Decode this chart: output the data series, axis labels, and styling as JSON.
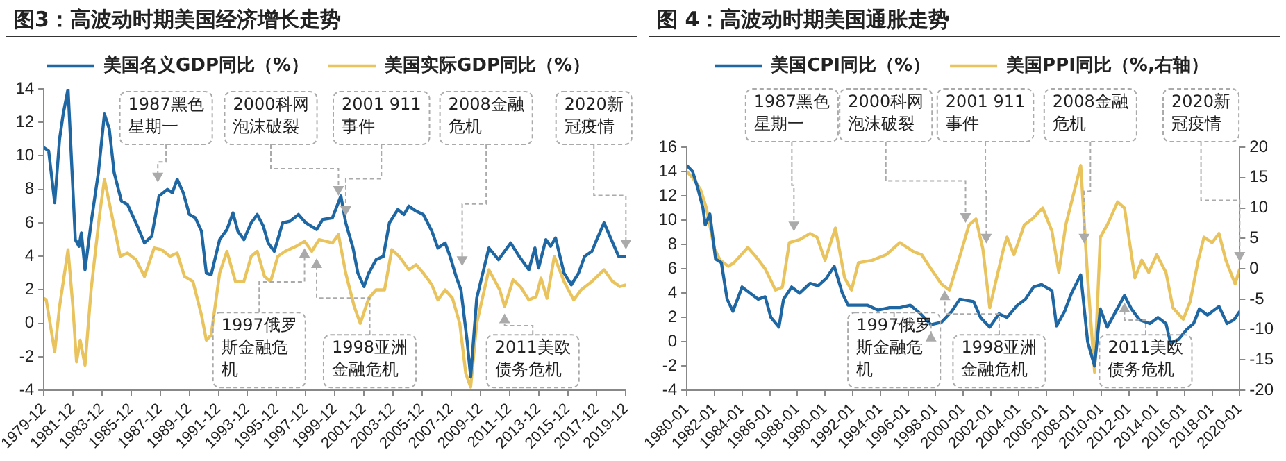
{
  "chart_data": [
    {
      "type": "line",
      "title": "图3：高波动时期美国经济增长走势",
      "legend": "top",
      "grid": false,
      "xlim": [
        "1979-12",
        "2019-12"
      ],
      "xticks": [
        "1979-12",
        "1981-12",
        "1983-12",
        "1985-12",
        "1987-12",
        "1989-12",
        "1991-12",
        "1993-12",
        "1995-12",
        "1997-12",
        "1999-12",
        "2001-12",
        "2003-12",
        "2005-12",
        "2007-12",
        "2009-12",
        "2011-12",
        "2013-12",
        "2015-12",
        "2017-12",
        "2019-12"
      ],
      "ylim": [
        -4,
        14
      ],
      "yticks": [
        -4,
        -2,
        0,
        2,
        4,
        6,
        8,
        10,
        12,
        14
      ],
      "series": [
        {
          "name": "美国名义GDP同比（%）",
          "color": "#1f67a3",
          "x": [
            "1979-12",
            "1980-04",
            "1980-09",
            "1981-01",
            "1981-04",
            "1981-08",
            "1982-02",
            "1982-05",
            "1982-07",
            "1982-10",
            "1983-03",
            "1983-09",
            "1984-02",
            "1984-06",
            "1984-10",
            "1985-04",
            "1985-09",
            "1986-04",
            "1986-11",
            "1987-05",
            "1987-11",
            "1988-06",
            "1988-10",
            "1989-02",
            "1989-07",
            "1989-12",
            "1990-05",
            "1990-10",
            "1991-02",
            "1991-06",
            "1992-01",
            "1992-07",
            "1992-12",
            "1993-04",
            "1993-09",
            "1994-03",
            "1994-08",
            "1995-01",
            "1995-05",
            "1995-10",
            "1996-05",
            "1996-11",
            "1997-06",
            "1997-12",
            "1998-09",
            "1999-02",
            "1999-10",
            "2000-05",
            "2000-09",
            "2001-03",
            "2001-07",
            "2001-12",
            "2002-04",
            "2002-10",
            "2003-04",
            "2003-09",
            "2004-04",
            "2004-09",
            "2005-01",
            "2005-07",
            "2006-01",
            "2006-08",
            "2007-01",
            "2007-07",
            "2007-11",
            "2008-04",
            "2008-08",
            "2009-01",
            "2009-04",
            "2009-09",
            "2010-07",
            "2011-03",
            "2012-01",
            "2012-08",
            "2013-04",
            "2013-09",
            "2013-12",
            "2014-06",
            "2014-10",
            "2015-02",
            "2015-09",
            "2016-03",
            "2016-09",
            "2017-02",
            "2017-08",
            "2017-12",
            "2018-06",
            "2018-12",
            "2019-06",
            "2019-12"
          ],
          "values": [
            10.5,
            10.3,
            7.2,
            11,
            12.5,
            14,
            5,
            4.6,
            5.4,
            3.2,
            6,
            9,
            12.5,
            11.6,
            9,
            7.3,
            7.1,
            6,
            4.8,
            5.2,
            7.6,
            8,
            7.8,
            8.6,
            7.8,
            6.5,
            6.3,
            5.5,
            3,
            2.9,
            5,
            5.6,
            6.6,
            5.5,
            5,
            6,
            6.5,
            5.8,
            4.8,
            4.3,
            6,
            6.1,
            6.5,
            6,
            5.6,
            6.2,
            6.3,
            7.6,
            6,
            4.5,
            3,
            2.2,
            3,
            3.8,
            4,
            6,
            6.8,
            6.5,
            7,
            6.7,
            6.5,
            5.5,
            4.5,
            4.8,
            4,
            2.8,
            2,
            -1,
            -3.2,
            1.5,
            4.5,
            3.8,
            4.8,
            4,
            3.2,
            4.5,
            3.3,
            5,
            4.6,
            5.1,
            3,
            2.3,
            3,
            4,
            4.3,
            5,
            6,
            5,
            4,
            4
          ]
        },
        {
          "name": "美国实际GDP同比（%）",
          "color": "#e9c45e",
          "x": [
            "1979-12",
            "1980-02",
            "1980-09",
            "1981-01",
            "1981-08",
            "1981-12",
            "1982-03",
            "1982-06",
            "1982-10",
            "1983-03",
            "1983-10",
            "1984-02",
            "1984-08",
            "1985-03",
            "1985-09",
            "1986-04",
            "1986-11",
            "1987-07",
            "1988-01",
            "1988-08",
            "1989-02",
            "1989-08",
            "1990-03",
            "1990-10",
            "1991-02",
            "1991-06",
            "1992-01",
            "1992-07",
            "1993-02",
            "1993-09",
            "1994-03",
            "1994-08",
            "1995-02",
            "1995-07",
            "1996-01",
            "1996-07",
            "1997-04",
            "1997-11",
            "1998-05",
            "1998-11",
            "1999-10",
            "2000-03",
            "2000-09",
            "2001-04",
            "2001-09",
            "2002-04",
            "2002-10",
            "2003-05",
            "2003-11",
            "2004-05",
            "2005-01",
            "2005-07",
            "2006-01",
            "2006-08",
            "2007-01",
            "2007-07",
            "2008-01",
            "2008-07",
            "2008-12",
            "2009-04",
            "2009-09",
            "2010-07",
            "2011-04",
            "2011-08",
            "2012-03",
            "2012-09",
            "2013-04",
            "2013-10",
            "2014-02",
            "2014-07",
            "2015-01",
            "2015-09",
            "2016-05",
            "2016-11",
            "2017-08",
            "2018-06",
            "2019-01",
            "2019-07",
            "2019-12"
          ],
          "values": [
            1.5,
            1.4,
            -1.7,
            1,
            4.4,
            1,
            -2.3,
            -1,
            -2.5,
            2,
            6.5,
            8.6,
            6.5,
            4,
            4.2,
            3.8,
            2.8,
            4.5,
            4.4,
            4,
            4.2,
            2.8,
            2.5,
            0.5,
            -1,
            -0.7,
            3,
            4.3,
            2.5,
            2.5,
            4,
            4.3,
            2.8,
            2.5,
            4,
            4.3,
            4.6,
            4.9,
            4.3,
            5,
            4.8,
            5.3,
            3,
            1,
            0,
            1.5,
            2,
            2,
            4.4,
            4,
            3.2,
            3.5,
            3,
            2.3,
            1.4,
            2,
            1.5,
            0,
            -3,
            -3.8,
            0,
            3.2,
            2,
            1,
            2.6,
            2.2,
            1.4,
            1.6,
            2.7,
            1.5,
            4,
            2.5,
            1.4,
            2,
            2.5,
            3.2,
            2.5,
            2.2,
            2.3
          ]
        }
      ],
      "annotations": [
        {
          "text": "1987黑色星期一",
          "x": "1987-10",
          "y": 8
        },
        {
          "text": "2000科网泡沫破裂",
          "x": "2000-03",
          "y": 7.2
        },
        {
          "text": "2001 911事件",
          "x": "2000-09",
          "y": 6
        },
        {
          "text": "2008金融危机",
          "x": "2008-09",
          "y": 3
        },
        {
          "text": "2020新冠疫情",
          "x": "2019-12",
          "y": 4
        },
        {
          "text": "1997俄罗斯金融危机",
          "x": "1997-11",
          "y": 4.9
        },
        {
          "text": "1998亚洲金融危机",
          "x": "1998-09",
          "y": 4.3
        },
        {
          "text": "2011美欧债务危机",
          "x": "2011-08",
          "y": 1
        }
      ]
    },
    {
      "type": "line",
      "title": "图 4：高波动时期美国通胀走势",
      "legend": "top",
      "grid": false,
      "xlim": [
        "1980-01",
        "2020-01"
      ],
      "xticks": [
        "1980-01",
        "1982-01",
        "1984-01",
        "1986-01",
        "1988-01",
        "1990-01",
        "1992-01",
        "1994-01",
        "1996-01",
        "1998-01",
        "2000-01",
        "2002-01",
        "2004-01",
        "2006-01",
        "2008-01",
        "2010-01",
        "2012-01",
        "2014-01",
        "2016-01",
        "2018-01",
        "2020-01"
      ],
      "ylim": [
        -4,
        16
      ],
      "yticks": [
        -4,
        -2,
        0,
        2,
        4,
        6,
        8,
        10,
        12,
        14,
        16
      ],
      "y2lim": [
        -20,
        20
      ],
      "y2ticks": [
        -20,
        -15,
        -10,
        -5,
        0,
        5,
        10,
        15,
        20
      ],
      "series": [
        {
          "name": "美国CPI同比（%）",
          "color": "#1f67a3",
          "x": [
            "1980-01",
            "1980-06",
            "1980-10",
            "1981-03",
            "1981-05",
            "1981-09",
            "1982-02",
            "1982-07",
            "1982-12",
            "1983-05",
            "1984-01",
            "1984-08",
            "1985-03",
            "1985-09",
            "1986-02",
            "1986-09",
            "1987-01",
            "1987-08",
            "1988-03",
            "1988-12",
            "1989-07",
            "1990-02",
            "1990-09",
            "1991-04",
            "1991-09",
            "1992-05",
            "1993-02",
            "1993-11",
            "1994-09",
            "1995-06",
            "1996-03",
            "1996-12",
            "1997-09",
            "1998-06",
            "1999-03",
            "1999-10",
            "2000-10",
            "2001-04",
            "2001-12",
            "2002-08",
            "2003-03",
            "2003-12",
            "2004-07",
            "2005-02",
            "2005-09",
            "2006-06",
            "2006-10",
            "2007-05",
            "2007-11",
            "2008-07",
            "2009-01",
            "2009-07",
            "2009-12",
            "2010-06",
            "2011-09",
            "2012-03",
            "2012-10",
            "2013-07",
            "2014-02",
            "2014-09",
            "2015-01",
            "2015-08",
            "2016-03",
            "2016-09",
            "2017-02",
            "2017-09",
            "2018-07",
            "2019-02",
            "2019-08",
            "2020-01"
          ],
          "values": [
            14.5,
            14,
            12.8,
            11,
            9.6,
            10.5,
            6.8,
            6.5,
            3.5,
            2.5,
            4.5,
            4,
            3.5,
            3.7,
            2,
            1.2,
            3.5,
            4.5,
            4,
            4.8,
            4.6,
            5.2,
            6.2,
            4,
            3,
            3,
            3,
            2.6,
            2.8,
            2.8,
            3,
            2.3,
            1.4,
            1.6,
            2.5,
            3.5,
            3.3,
            2,
            1.2,
            2.3,
            2,
            3,
            3.5,
            4.5,
            4.7,
            4.2,
            1.3,
            2.5,
            4,
            5.5,
            0,
            -2,
            2.7,
            1.2,
            3.8,
            2.7,
            1.8,
            1.5,
            2,
            1.5,
            -0.1,
            0.2,
            1,
            1.5,
            2.7,
            2.2,
            2.9,
            1.5,
            1.8,
            2.5
          ]
        },
        {
          "name": "美国PPI同比（%,右轴）",
          "color": "#e9c45e",
          "axis": "y2",
          "x": [
            "1980-01",
            "1980-06",
            "1981-01",
            "1981-06",
            "1982-01",
            "1982-06",
            "1983-01",
            "1983-06",
            "1984-06",
            "1985-01",
            "1985-09",
            "1986-06",
            "1986-12",
            "1987-06",
            "1988-03",
            "1988-12",
            "1989-06",
            "1990-01",
            "1990-10",
            "1991-06",
            "1991-12",
            "1992-06",
            "1993-06",
            "1994-06",
            "1995-06",
            "1996-06",
            "1997-01",
            "1997-09",
            "1998-06",
            "1999-01",
            "1999-09",
            "2000-06",
            "2000-12",
            "2001-06",
            "2001-12",
            "2002-06",
            "2002-12",
            "2003-03",
            "2003-09",
            "2004-06",
            "2005-01",
            "2005-10",
            "2006-06",
            "2006-12",
            "2007-06",
            "2008-07",
            "2009-01",
            "2009-07",
            "2009-12",
            "2010-06",
            "2011-03",
            "2011-09",
            "2012-06",
            "2012-12",
            "2013-06",
            "2014-01",
            "2014-09",
            "2015-03",
            "2015-12",
            "2016-06",
            "2017-01",
            "2017-06",
            "2018-01",
            "2018-07",
            "2019-01",
            "2019-09",
            "2020-01"
          ],
          "values": [
            16,
            15,
            13,
            10,
            3.3,
            1.4,
            0.4,
            1,
            3.5,
            2,
            0,
            -3.5,
            -3,
            4.3,
            4.8,
            5.8,
            5.2,
            1.4,
            6.7,
            -1.5,
            -3.5,
            1,
            1.4,
            2.3,
            4.3,
            2.8,
            2.3,
            0,
            -2.5,
            -3.5,
            1.4,
            7.2,
            8.2,
            3.3,
            -6.4,
            -1.5,
            3.3,
            5.2,
            2.3,
            7.2,
            8.2,
            10,
            6.2,
            -0.6,
            7.2,
            17,
            -1.5,
            -17,
            5.2,
            7.2,
            11,
            10,
            -1.5,
            1.4,
            -0.6,
            2.3,
            -0.6,
            -6.4,
            -8.3,
            -5.4,
            1.4,
            5.2,
            4.3,
            5.8,
            1.4,
            -2.5,
            0
          ]
        }
      ],
      "annotations": [
        {
          "text": "1987黑色星期一",
          "x": "1987-10",
          "y": 8.5
        },
        {
          "text": "2000科网泡沫破裂",
          "x": "2000-03",
          "y": 9.2
        },
        {
          "text": "2001 911事件",
          "x": "2001-09",
          "y": 7.5
        },
        {
          "text": "2008金融危机",
          "x": "2008-10",
          "y": 7.5
        },
        {
          "text": "2020新冠疫情",
          "x": "2020-01",
          "y": 6
        },
        {
          "text": "1997俄罗斯金融危机",
          "x": "1997-09",
          "y": 1.4
        },
        {
          "text": "1998亚洲金融危机",
          "x": "1998-09",
          "y": 4.8
        },
        {
          "text": "2011美欧债务危机",
          "x": "2011-09",
          "y": 3.8
        }
      ]
    }
  ]
}
